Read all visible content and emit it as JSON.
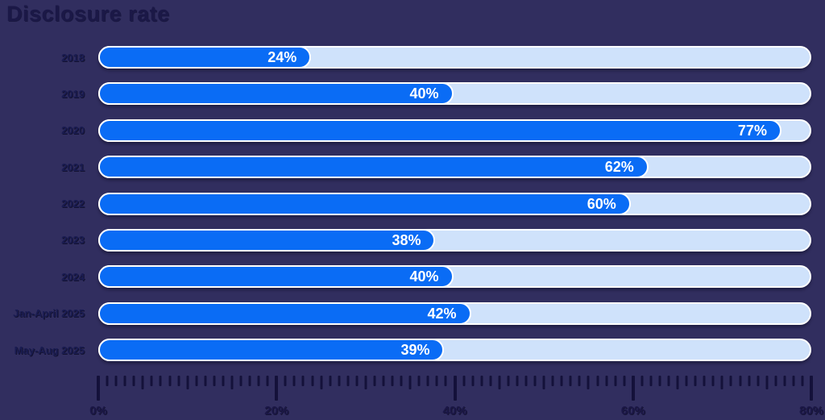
{
  "title": "Disclosure rate",
  "colors": {
    "background": "#312e5f",
    "bar_fill": "#0a6cf5",
    "bar_track": "#cfe2fb",
    "bar_border": "#ffffff",
    "title_text": "#1b1847",
    "category_text": "#1a1c52",
    "value_text": "#ffffff",
    "axis_tick": "#14113a",
    "axis_label_text": "#1b1747"
  },
  "chart_data": {
    "type": "bar",
    "orientation": "horizontal",
    "title": "Disclosure rate",
    "categories": [
      "2018",
      "2019",
      "2020",
      "2021",
      "2022",
      "2023",
      "2024",
      "Jan-April 2025",
      "May-Aug 2025"
    ],
    "values": [
      24,
      40,
      77,
      62,
      60,
      38,
      40,
      42,
      39
    ],
    "value_labels": [
      "24%",
      "40%",
      "77%",
      "62%",
      "60%",
      "38%",
      "40%",
      "42%",
      "39%"
    ],
    "xlabel": "",
    "ylabel": "",
    "xlim": [
      0,
      80
    ],
    "x_ticks": [
      0,
      20,
      40,
      60,
      80
    ],
    "x_tick_labels": [
      "0%",
      "20%",
      "40%",
      "60%",
      "80%"
    ],
    "grid": false,
    "legend": false
  },
  "bars": [
    {
      "label": "2018",
      "value": 24,
      "value_label": "24%",
      "width_pct": "30%"
    },
    {
      "label": "2019",
      "value": 40,
      "value_label": "40%",
      "width_pct": "50%"
    },
    {
      "label": "2020",
      "value": 77,
      "value_label": "77%",
      "width_pct": "96.25%"
    },
    {
      "label": "2021",
      "value": 62,
      "value_label": "62%",
      "width_pct": "77.5%"
    },
    {
      "label": "2022",
      "value": 60,
      "value_label": "60%",
      "width_pct": "75%"
    },
    {
      "label": "2023",
      "value": 38,
      "value_label": "38%",
      "width_pct": "47.5%"
    },
    {
      "label": "2024",
      "value": 40,
      "value_label": "40%",
      "width_pct": "50%"
    },
    {
      "label": "Jan-April 2025",
      "value": 42,
      "value_label": "42%",
      "width_pct": "52.5%"
    },
    {
      "label": "May-Aug 2025",
      "value": 39,
      "value_label": "39%",
      "width_pct": "48.75%"
    }
  ],
  "axis": {
    "min": 0,
    "max": 80,
    "minor_step": 1,
    "medium_step": 5,
    "major_step": 20,
    "labels": [
      {
        "value": 0,
        "text": "0%"
      },
      {
        "value": 20,
        "text": "20%"
      },
      {
        "value": 40,
        "text": "40%"
      },
      {
        "value": 60,
        "text": "60%"
      },
      {
        "value": 80,
        "text": "80%"
      }
    ]
  }
}
